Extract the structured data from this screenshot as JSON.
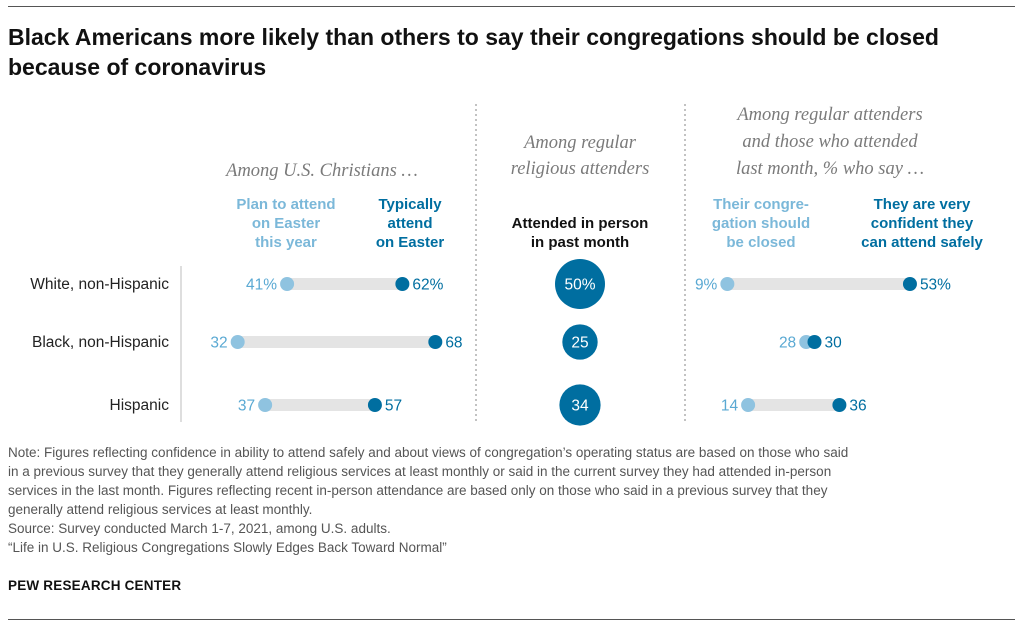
{
  "title": "Black Americans more likely than others to say their congregations should be closed because of coronavirus",
  "colors": {
    "light": "#8fc3e0",
    "dark": "#006ea0",
    "bar": "#e4e4e4",
    "bubble": "#006ea0"
  },
  "groups": {
    "christians": "Among U.S. Christians …",
    "attenders": [
      "Among regular",
      "religious attenders"
    ],
    "attenders_month": [
      "Among regular attenders",
      "and those who attended",
      "last month, % who say …"
    ]
  },
  "column_headers": {
    "plan_easter": [
      "Plan to attend",
      "on Easter",
      "this year"
    ],
    "typical_easter": [
      "Typically",
      "attend",
      "on Easter"
    ],
    "attended_person": [
      "Attended in person",
      "in past month"
    ],
    "should_close": [
      "Their congre-",
      "gation should",
      "be closed"
    ],
    "confident_safe": [
      "They are very",
      "confident they",
      "can attend safely"
    ]
  },
  "chart_data": {
    "type": "dot-plot",
    "categories": [
      "White, non-Hispanic",
      "Black, non-Hispanic",
      "Hispanic"
    ],
    "panels": [
      {
        "name": "Among U.S. Christians …",
        "series": [
          {
            "name": "Plan to attend on Easter this year",
            "values": [
              41,
              32,
              37
            ],
            "labels": [
              "41%",
              "32",
              "37"
            ]
          },
          {
            "name": "Typically attend on Easter",
            "values": [
              62,
              68,
              57
            ],
            "labels": [
              "62%",
              "68",
              "57"
            ]
          }
        ]
      },
      {
        "name": "Among regular religious attenders",
        "series": [
          {
            "name": "Attended in person in past month",
            "values": [
              50,
              25,
              34
            ],
            "labels": [
              "50%",
              "25",
              "34"
            ]
          }
        ]
      },
      {
        "name": "Among regular attenders and those who attended last month, % who say …",
        "series": [
          {
            "name": "Their congregation should be closed",
            "values": [
              9,
              28,
              14
            ],
            "labels": [
              "9%",
              "28",
              "14"
            ]
          },
          {
            "name": "They are very confident they can attend safely",
            "values": [
              53,
              30,
              36
            ],
            "labels": [
              "53%",
              "30",
              "36"
            ]
          }
        ]
      }
    ]
  },
  "notes": [
    "Note: Figures reflecting confidence in ability to attend safely and about views of congregation’s operating status are based on those who said",
    "in a previous survey that they generally attend religious services at least monthly or said in the current survey they had attended in-person",
    "services in the last month. Figures reflecting recent in-person attendance are based only on those who said in a previous survey that they",
    "generally attend religious services at least monthly.",
    "Source: Survey conducted March 1-7, 2021, among U.S. adults.",
    "“Life in U.S. Religious Congregations Slowly Edges Back Toward Normal”"
  ],
  "brand": "PEW RESEARCH CENTER"
}
